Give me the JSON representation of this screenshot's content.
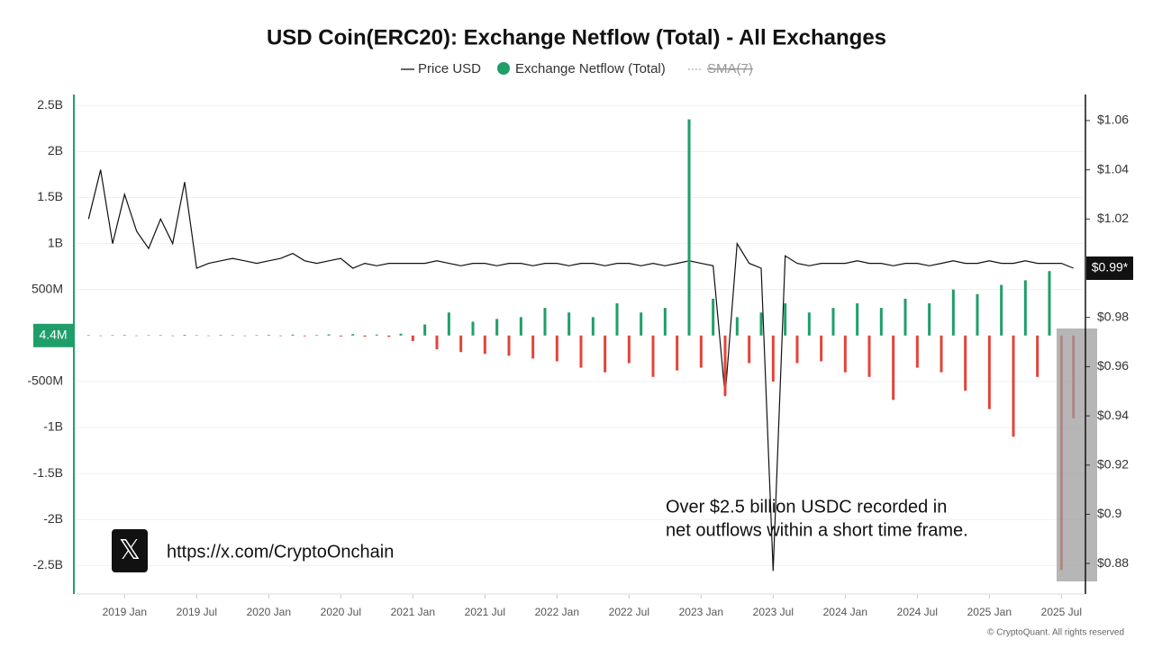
{
  "chart_data": {
    "type": "combo",
    "title": "USD Coin(ERC20): Exchange Netflow (Total) - All Exchanges",
    "x": [
      "2018-10",
      "2018-11",
      "2018-12",
      "2019-01",
      "2019-02",
      "2019-03",
      "2019-04",
      "2019-05",
      "2019-06",
      "2019-07",
      "2019-08",
      "2019-09",
      "2019-10",
      "2019-11",
      "2019-12",
      "2020-01",
      "2020-02",
      "2020-03",
      "2020-04",
      "2020-05",
      "2020-06",
      "2020-07",
      "2020-08",
      "2020-09",
      "2020-10",
      "2020-11",
      "2020-12",
      "2021-01",
      "2021-02",
      "2021-03",
      "2021-04",
      "2021-05",
      "2021-06",
      "2021-07",
      "2021-08",
      "2021-09",
      "2021-10",
      "2021-11",
      "2021-12",
      "2022-01",
      "2022-02",
      "2022-03",
      "2022-04",
      "2022-05",
      "2022-06",
      "2022-07",
      "2022-08",
      "2022-09",
      "2022-10",
      "2022-11",
      "2022-12",
      "2023-01",
      "2023-02",
      "2023-03",
      "2023-04",
      "2023-05",
      "2023-06",
      "2023-07",
      "2023-08",
      "2023-09",
      "2023-10",
      "2023-11",
      "2023-12",
      "2024-01",
      "2024-02",
      "2024-03",
      "2024-04",
      "2024-05",
      "2024-06",
      "2024-07",
      "2024-08",
      "2024-09",
      "2024-10",
      "2024-11",
      "2024-12",
      "2025-01",
      "2025-02",
      "2025-03",
      "2025-04",
      "2025-05",
      "2025-06",
      "2025-07",
      "2025-08"
    ],
    "series": [
      {
        "name": "Price USD",
        "type": "line",
        "axis": "y2",
        "color": "#111111",
        "values": [
          1.02,
          1.04,
          1.01,
          1.03,
          1.015,
          1.008,
          1.02,
          1.01,
          1.035,
          1.0,
          1.002,
          1.003,
          1.004,
          1.003,
          1.002,
          1.003,
          1.004,
          1.006,
          1.003,
          1.002,
          1.003,
          1.004,
          1.0,
          1.002,
          1.001,
          1.002,
          1.002,
          1.002,
          1.002,
          1.003,
          1.002,
          1.001,
          1.002,
          1.002,
          1.001,
          1.002,
          1.002,
          1.001,
          1.002,
          1.002,
          1.001,
          1.002,
          1.002,
          1.001,
          1.002,
          1.002,
          1.001,
          1.002,
          1.001,
          1.002,
          1.003,
          1.002,
          1.001,
          0.948,
          1.01,
          1.002,
          1.0,
          0.877,
          1.005,
          1.002,
          1.001,
          1.002,
          1.002,
          1.002,
          1.003,
          1.002,
          1.002,
          1.001,
          1.002,
          1.002,
          1.001,
          1.002,
          1.003,
          1.002,
          1.002,
          1.003,
          1.002,
          1.002,
          1.003,
          1.002,
          1.002,
          1.002,
          1.0
        ]
      },
      {
        "name": "Exchange Netflow (Total)",
        "type": "bar",
        "color": "#1f9e6a",
        "negative_color": "#e2443a",
        "values": [
          5,
          -3,
          4,
          6,
          -2,
          3,
          5,
          -4,
          8,
          3,
          -5,
          6,
          4,
          -3,
          5,
          7,
          -6,
          10,
          -8,
          6,
          12,
          -10,
          15,
          -12,
          10,
          -15,
          20,
          -60,
          120,
          -150,
          250,
          -180,
          150,
          -200,
          180,
          -220,
          200,
          -250,
          300,
          -280,
          250,
          -350,
          200,
          -400,
          350,
          -300,
          250,
          -450,
          300,
          -380,
          2350,
          -350,
          400,
          -650,
          200,
          -300,
          250,
          -500,
          350,
          -300,
          250,
          -280,
          300,
          -400,
          350,
          -450,
          300,
          -700,
          400,
          -350,
          350,
          -400,
          500,
          -600,
          450,
          -800,
          550,
          -1100,
          600,
          -450,
          700,
          -2550,
          -900
        ]
      }
    ],
    "hidden_series": [
      "SMA(7)"
    ],
    "xlim": [
      "2018-09",
      "2025-09"
    ],
    "xticks": [
      {
        "value": "2019-01",
        "label": "2019 Jan"
      },
      {
        "value": "2019-07",
        "label": "2019 Jul"
      },
      {
        "value": "2020-01",
        "label": "2020 Jan"
      },
      {
        "value": "2020-07",
        "label": "2020 Jul"
      },
      {
        "value": "2021-01",
        "label": "2021 Jan"
      },
      {
        "value": "2021-07",
        "label": "2021 Jul"
      },
      {
        "value": "2022-01",
        "label": "2022 Jan"
      },
      {
        "value": "2022-07",
        "label": "2022 Jul"
      },
      {
        "value": "2023-01",
        "label": "2023 Jan"
      },
      {
        "value": "2023-07",
        "label": "2023 Jul"
      },
      {
        "value": "2024-01",
        "label": "2024 Jan"
      },
      {
        "value": "2024-07",
        "label": "2024 Jul"
      },
      {
        "value": "2025-01",
        "label": "2025 Jan"
      },
      {
        "value": "2025-07",
        "label": "2025 Jul"
      }
    ],
    "ylim": [
      -2810,
      2620
    ],
    "yticks": [
      {
        "value": 2500,
        "label": "2.5B"
      },
      {
        "value": 2000,
        "label": "2B"
      },
      {
        "value": 1500,
        "label": "1.5B"
      },
      {
        "value": 1000,
        "label": "1B"
      },
      {
        "value": 500,
        "label": "500M"
      },
      {
        "value": -500,
        "label": "-500M"
      },
      {
        "value": -1000,
        "label": "-1B"
      },
      {
        "value": -1500,
        "label": "-1.5B"
      },
      {
        "value": -2000,
        "label": "-2B"
      },
      {
        "value": -2500,
        "label": "-2.5B"
      }
    ],
    "y2lim": [
      0.8676,
      1.0706
    ],
    "y2ticks": [
      {
        "value": 1.06,
        "label": "$1.06"
      },
      {
        "value": 1.04,
        "label": "$1.04"
      },
      {
        "value": 1.02,
        "label": "$1.02"
      },
      {
        "value": 0.98,
        "label": "$0.98"
      },
      {
        "value": 0.96,
        "label": "$0.96"
      },
      {
        "value": 0.94,
        "label": "$0.94"
      },
      {
        "value": 0.92,
        "label": "$0.92"
      },
      {
        "value": 0.9,
        "label": "$0.9"
      },
      {
        "value": 0.88,
        "label": "$0.88"
      }
    ],
    "current_netflow_label": "4.4M",
    "current_price_label": "$0.99*",
    "grid": true,
    "annotation": [
      "Over $2.5 billion USDC recorded in",
      "net outflows within a short time frame."
    ],
    "watermark_url": "https://x.com/CryptoOnchain",
    "watermark_icon": "𝕏",
    "credit": "© CryptoQuant. All rights reserved"
  }
}
